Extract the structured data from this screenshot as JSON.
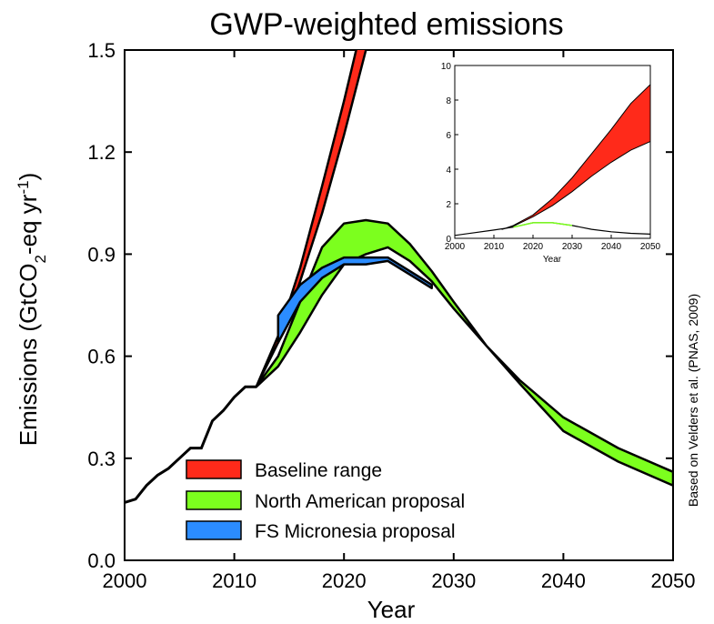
{
  "chart_data": {
    "type": "area",
    "title": "GWP-weighted emissions",
    "xlabel": "Year",
    "ylabel": "Emissions (GtCO",
    "ylabel_sub": "2",
    "ylabel_mid": "-eq yr",
    "ylabel_sup": "-1",
    "ylabel_end": ")",
    "xlim": [
      2000,
      2050
    ],
    "ylim": [
      0,
      1.5
    ],
    "x_ticks": [
      "2000",
      "2010",
      "2020",
      "2030",
      "2040",
      "2050"
    ],
    "y_ticks": [
      "0.0",
      "0.3",
      "0.6",
      "0.9",
      "1.2",
      "1.5"
    ],
    "x_tick_values": [
      2000,
      2010,
      2020,
      2030,
      2040,
      2050
    ],
    "y_tick_values": [
      0,
      0.3,
      0.6,
      0.9,
      1.2,
      1.5
    ],
    "credit": "Based on Velders et al. (PNAS, 2009)",
    "legend": {
      "position": "bottom-left",
      "entries": [
        {
          "label": "Baseline range",
          "color": "#ff2a1a"
        },
        {
          "label": "North American proposal",
          "color": "#7cff1e"
        },
        {
          "label": "FS Micronesia proposal",
          "color": "#2b8cff"
        }
      ]
    },
    "historical": {
      "x": [
        2000,
        2001,
        2002,
        2003,
        2004,
        2005,
        2006,
        2007,
        2008,
        2009,
        2010,
        2011,
        2012
      ],
      "y": [
        0.17,
        0.18,
        0.22,
        0.25,
        0.27,
        0.3,
        0.33,
        0.33,
        0.41,
        0.44,
        0.48,
        0.51,
        0.51
      ]
    },
    "series": [
      {
        "name": "Baseline range",
        "color": "#ff2a1a",
        "x": [
          2012,
          2014,
          2016,
          2018,
          2020,
          2022
        ],
        "lower": [
          0.51,
          0.64,
          0.82,
          1.02,
          1.25,
          1.5
        ],
        "upper": [
          0.51,
          0.66,
          0.86,
          1.1,
          1.35,
          1.62
        ]
      },
      {
        "name": "North American proposal",
        "color": "#7cff1e",
        "x": [
          2012,
          2014,
          2016,
          2018,
          2020,
          2022,
          2024,
          2026,
          2028,
          2030,
          2033,
          2036,
          2040,
          2045,
          2050
        ],
        "lower": [
          0.51,
          0.57,
          0.67,
          0.78,
          0.87,
          0.9,
          0.92,
          0.88,
          0.82,
          0.74,
          0.63,
          0.52,
          0.38,
          0.29,
          0.22
        ],
        "upper": [
          0.51,
          0.6,
          0.76,
          0.92,
          0.99,
          1.0,
          0.99,
          0.93,
          0.85,
          0.76,
          0.63,
          0.53,
          0.42,
          0.33,
          0.26
        ]
      },
      {
        "name": "FS Micronesia proposal",
        "color": "#2b8cff",
        "x": [
          2014,
          2016,
          2018,
          2020,
          2022,
          2024,
          2026,
          2028
        ],
        "lower": [
          0.64,
          0.76,
          0.83,
          0.87,
          0.87,
          0.88,
          0.84,
          0.8
        ],
        "upper": [
          0.72,
          0.81,
          0.86,
          0.89,
          0.89,
          0.89,
          0.85,
          0.81
        ]
      }
    ],
    "inset": {
      "xlabel": "Year",
      "xlim": [
        2000,
        2050
      ],
      "ylim": [
        0,
        10
      ],
      "x_ticks": [
        "2000",
        "2010",
        "2020",
        "2030",
        "2040",
        "2050"
      ],
      "y_ticks": [
        "0",
        "2",
        "4",
        "6",
        "8",
        "10"
      ],
      "x_tick_values": [
        2000,
        2010,
        2020,
        2030,
        2040,
        2050
      ],
      "y_tick_values": [
        0,
        2,
        4,
        6,
        8,
        10
      ],
      "baseline": {
        "x": [
          2012,
          2015,
          2020,
          2025,
          2030,
          2035,
          2040,
          2045,
          2050
        ],
        "lower": [
          0.51,
          0.7,
          1.25,
          1.9,
          2.7,
          3.6,
          4.4,
          5.1,
          5.6
        ],
        "upper": [
          0.51,
          0.75,
          1.35,
          2.3,
          3.5,
          4.9,
          6.3,
          7.8,
          8.9
        ]
      },
      "proposal_line": {
        "x": [
          2000,
          2010,
          2015,
          2020,
          2025,
          2030,
          2035,
          2040,
          2045,
          2050
        ],
        "y": [
          0.17,
          0.48,
          0.65,
          0.9,
          0.9,
          0.74,
          0.52,
          0.38,
          0.29,
          0.24
        ]
      }
    }
  }
}
